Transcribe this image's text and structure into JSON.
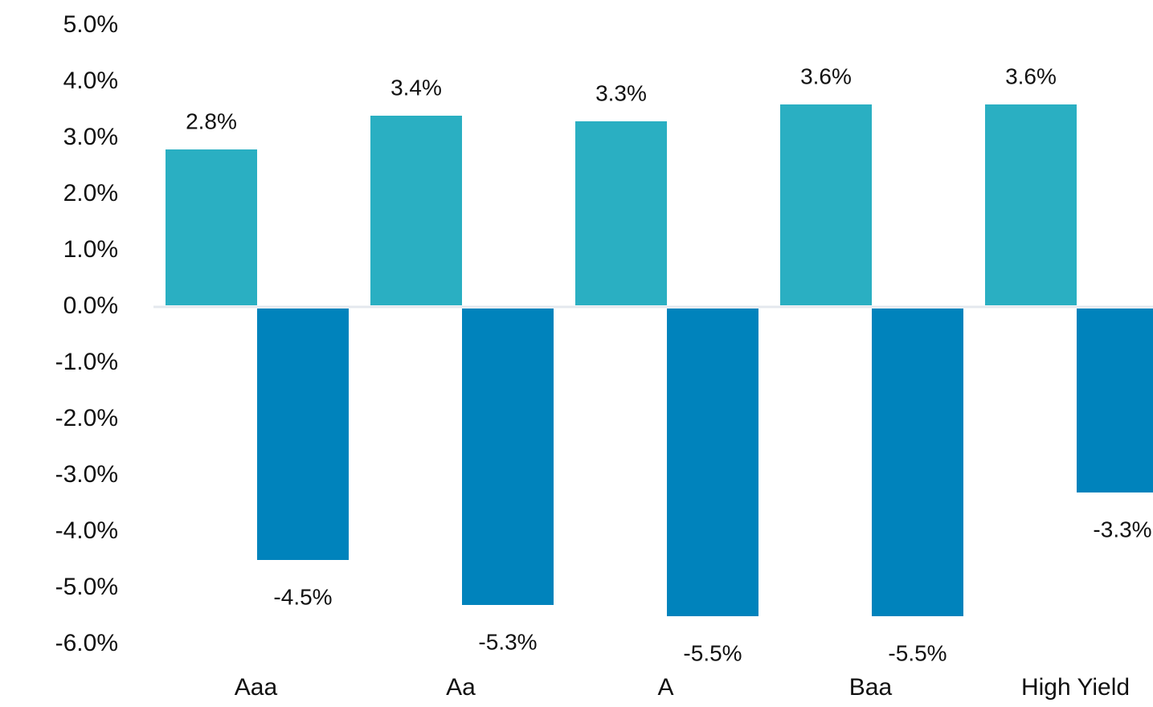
{
  "chart_data": {
    "type": "bar",
    "categories": [
      "Aaa",
      "Aa",
      "A",
      "Baa",
      "High Yield"
    ],
    "series": [
      {
        "values": [
          2.8,
          3.4,
          3.3,
          3.6,
          3.6
        ],
        "labels": [
          "2.8%",
          "3.4%",
          "3.3%",
          "3.6%",
          "3.6%"
        ],
        "color": "#2AAFC2"
      },
      {
        "values": [
          -4.5,
          -5.3,
          -5.5,
          -5.5,
          -3.3
        ],
        "labels": [
          "-4.5%",
          "-5.3%",
          "-5.5%",
          "-5.5%",
          "-3.3%"
        ],
        "color": "#0083BC"
      }
    ],
    "y_ticks": [
      "5.0%",
      "4.0%",
      "3.0%",
      "2.0%",
      "1.0%",
      "0.0%",
      "-1.0%",
      "-2.0%",
      "-3.0%",
      "-4.0%",
      "-5.0%",
      "-6.0%"
    ],
    "ylim": [
      -6,
      5
    ],
    "grid": false,
    "legend": "none",
    "xlabel": "",
    "ylabel": "",
    "title": ""
  }
}
